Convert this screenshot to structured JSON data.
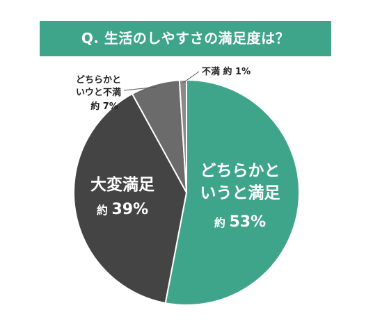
{
  "title": "Q. 生活のしやすさの満足度は？",
  "colors": {
    "banner": "#3fa58a",
    "pie_border": "#ffffff",
    "leader_line": "#555555"
  },
  "chart_data": {
    "type": "pie",
    "title": "Q. 生活のしやすさの満足度は？",
    "slices": [
      {
        "label": "どちらかというと満足",
        "prefix": "約",
        "value": 53,
        "unit": "%",
        "color": "#3fa58a"
      },
      {
        "label": "大変満足",
        "prefix": "約",
        "value": 39,
        "unit": "%",
        "color": "#444444"
      },
      {
        "label": "どちらかといウと不満",
        "prefix": "約",
        "value": 7,
        "unit": "%",
        "color": "#6b6b6b"
      },
      {
        "label": "不満",
        "prefix": "約",
        "value": 1,
        "unit": "%",
        "color": "#8a8a8a"
      }
    ]
  }
}
